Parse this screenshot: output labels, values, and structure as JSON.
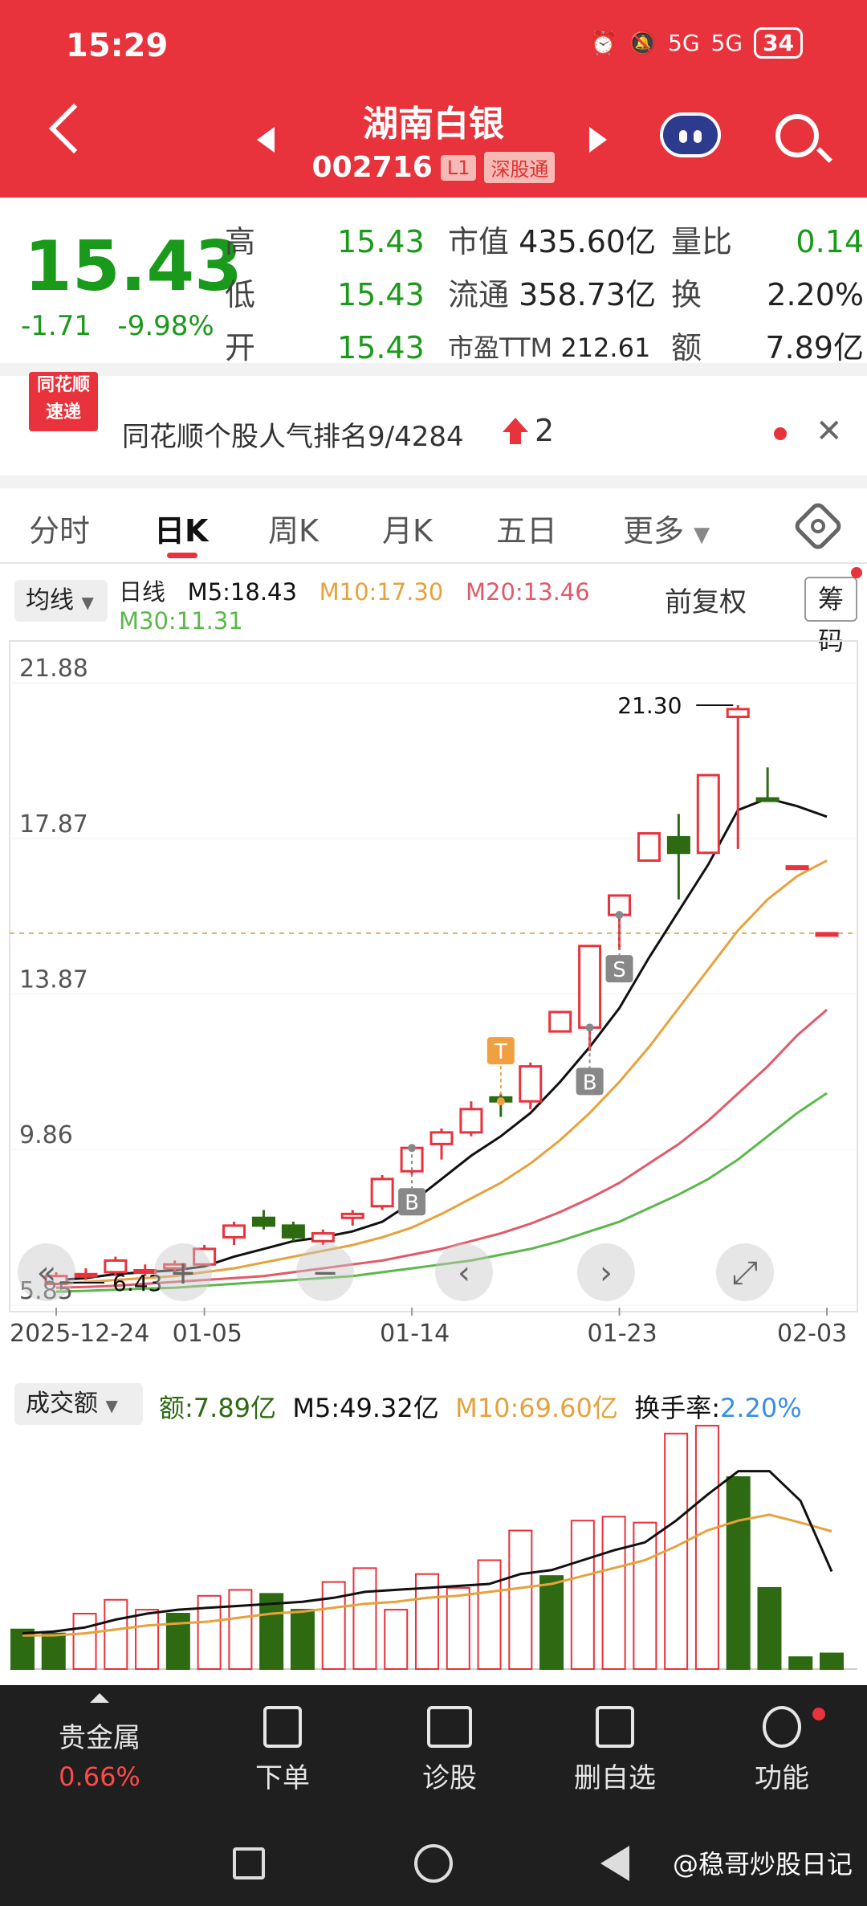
{
  "status_bar": {
    "time": "15:29",
    "network1": "5G",
    "network2": "5G",
    "battery": "34"
  },
  "header": {
    "stock_name": "湖南白银",
    "stock_code": "002716",
    "tag_level": "L1",
    "tag_connect": "深股通"
  },
  "quote": {
    "price": "15.43",
    "change": "-1.71",
    "change_pct": "-9.98%",
    "high_label": "高",
    "high": "15.43",
    "low_label": "低",
    "low": "15.43",
    "open_label": "开",
    "open": "15.43",
    "mcap_label": "市值",
    "mcap": "435.60亿",
    "float_label": "流通",
    "float": "358.73亿",
    "pe_label": "市盈TTM",
    "pe": "212.61",
    "vr_label": "量比",
    "vr": "0.14",
    "turnover_label": "换",
    "turnover": "2.20%",
    "amount_label": "额",
    "amount": "7.89亿"
  },
  "rank_banner": {
    "logo_line1": "同花顺",
    "logo_line2": "速递",
    "text": "同花顺个股人气排名9/4284",
    "rise": "2"
  },
  "tabs": [
    "分时",
    "日K",
    "周K",
    "月K",
    "五日",
    "更多"
  ],
  "active_tab": "日K",
  "kline_header": {
    "ma_button": "均线",
    "period": "日线",
    "m5": "M5:18.43",
    "m10": "M10:17.30",
    "m20": "M20:13.46",
    "m30": "M30:11.31",
    "adjust": "前复权",
    "chips": "筹码"
  },
  "volume_header": {
    "button": "成交额",
    "amount": "额:7.89亿",
    "m5": "M5:49.32亿",
    "m10": "M10:69.60亿",
    "turnover_label": "换手率:",
    "turnover": "2.20%"
  },
  "colors": {
    "up": "#e8323c",
    "down": "#2d6a12",
    "ma5": "#111111",
    "ma10": "#e6a23c",
    "ma20": "#e05a6a",
    "ma30": "#5bb84a"
  },
  "chart_data": [
    {
      "type": "candlestick",
      "y_ticks": [
        "21.88",
        "17.87",
        "13.87",
        "9.86",
        "5.85"
      ],
      "ylim": [
        5.85,
        21.88
      ],
      "x_ticks": [
        "2025-12-24",
        "01-05",
        "01-14",
        "01-23",
        "02-03"
      ],
      "annotations": {
        "max_label": "21.30",
        "min_label": "6.43",
        "markers": [
          "T",
          "B",
          "B",
          "S"
        ]
      },
      "candles": [
        {
          "o": 6.4,
          "c": 6.6,
          "h": 6.7,
          "l": 6.43
        },
        {
          "o": 6.6,
          "c": 6.65,
          "h": 6.8,
          "l": 6.5
        },
        {
          "o": 6.7,
          "c": 7.0,
          "h": 7.1,
          "l": 6.6
        },
        {
          "o": 6.7,
          "c": 6.75,
          "h": 6.9,
          "l": 6.6
        },
        {
          "o": 6.8,
          "c": 6.9,
          "h": 7.0,
          "l": 6.7
        },
        {
          "o": 6.9,
          "c": 7.3,
          "h": 7.4,
          "l": 6.9
        },
        {
          "o": 7.6,
          "c": 7.9,
          "h": 8.0,
          "l": 7.4
        },
        {
          "o": 8.1,
          "c": 7.9,
          "h": 8.3,
          "l": 7.8
        },
        {
          "o": 7.9,
          "c": 7.6,
          "h": 8.0,
          "l": 7.5
        },
        {
          "o": 7.5,
          "c": 7.7,
          "h": 7.8,
          "l": 7.4
        },
        {
          "o": 8.1,
          "c": 8.2,
          "h": 8.3,
          "l": 7.9
        },
        {
          "o": 8.4,
          "c": 9.1,
          "h": 9.2,
          "l": 8.3
        },
        {
          "o": 9.3,
          "c": 9.9,
          "h": 10.0,
          "l": 9.2
        },
        {
          "o": 10.0,
          "c": 10.3,
          "h": 10.4,
          "l": 9.6
        },
        {
          "o": 10.3,
          "c": 10.9,
          "h": 11.1,
          "l": 10.2
        },
        {
          "o": 11.2,
          "c": 11.1,
          "h": 11.3,
          "l": 10.7
        },
        {
          "o": 11.1,
          "c": 12.0,
          "h": 12.1,
          "l": 10.9
        },
        {
          "o": 12.9,
          "c": 13.4,
          "h": 13.4,
          "l": 12.9
        },
        {
          "o": 13.0,
          "c": 15.1,
          "h": 15.1,
          "l": 12.4
        },
        {
          "o": 15.9,
          "c": 16.4,
          "h": 16.4,
          "l": 15.0
        },
        {
          "o": 17.3,
          "c": 18.0,
          "h": 18.0,
          "l": 17.3
        },
        {
          "o": 17.9,
          "c": 17.5,
          "h": 18.5,
          "l": 16.3
        },
        {
          "o": 17.5,
          "c": 19.5,
          "h": 19.5,
          "l": 17.5
        },
        {
          "o": 21.0,
          "c": 21.2,
          "h": 21.3,
          "l": 17.6
        },
        {
          "o": 18.9,
          "c": 18.85,
          "h": 19.7,
          "l": 18.85
        },
        {
          "o": 17.15,
          "c": 17.15,
          "h": 17.15,
          "l": 17.15
        },
        {
          "o": 15.43,
          "c": 15.43,
          "h": 15.43,
          "l": 15.43
        }
      ],
      "ma5": [
        6.5,
        6.55,
        6.65,
        6.7,
        6.75,
        6.85,
        7.1,
        7.3,
        7.5,
        7.6,
        7.75,
        8.0,
        8.5,
        9.1,
        9.7,
        10.2,
        10.8,
        11.6,
        12.5,
        13.5,
        14.8,
        16.0,
        17.2,
        18.6,
        18.9,
        18.7,
        18.43
      ],
      "ma10": [
        6.4,
        6.45,
        6.5,
        6.55,
        6.6,
        6.7,
        6.8,
        6.95,
        7.1,
        7.25,
        7.4,
        7.6,
        7.85,
        8.2,
        8.6,
        9.0,
        9.5,
        10.1,
        10.8,
        11.6,
        12.5,
        13.5,
        14.5,
        15.5,
        16.3,
        16.9,
        17.3
      ],
      "ma20": [
        6.3,
        6.32,
        6.35,
        6.4,
        6.45,
        6.5,
        6.55,
        6.6,
        6.7,
        6.8,
        6.9,
        7.0,
        7.15,
        7.3,
        7.5,
        7.7,
        7.95,
        8.25,
        8.6,
        9.0,
        9.5,
        10.0,
        10.6,
        11.3,
        12.0,
        12.8,
        13.46
      ],
      "ma30": [
        6.2,
        6.22,
        6.25,
        6.28,
        6.3,
        6.35,
        6.4,
        6.45,
        6.5,
        6.55,
        6.6,
        6.7,
        6.8,
        6.9,
        7.0,
        7.15,
        7.3,
        7.5,
        7.75,
        8.0,
        8.35,
        8.7,
        9.1,
        9.6,
        10.2,
        10.8,
        11.31
      ]
    },
    {
      "type": "bar",
      "title": "成交额",
      "values": [
        20,
        18,
        28,
        35,
        30,
        28,
        37,
        40,
        38,
        30,
        44,
        51,
        30,
        48,
        41,
        55,
        70,
        47,
        75,
        77,
        74,
        119,
        123,
        97,
        41,
        6,
        7.89
      ],
      "direction": [
        "down",
        "down",
        "up",
        "up",
        "up",
        "down",
        "up",
        "up",
        "down",
        "down",
        "up",
        "up",
        "up",
        "up",
        "up",
        "up",
        "up",
        "down",
        "up",
        "up",
        "up",
        "up",
        "up",
        "down",
        "down",
        "down",
        "down"
      ],
      "ma5": [
        18,
        19,
        21,
        25,
        28,
        30,
        31,
        32,
        33,
        34,
        36,
        39,
        40,
        41,
        42,
        43,
        48,
        50,
        55,
        60,
        64,
        75,
        88,
        100,
        100,
        85,
        49.32
      ],
      "ma10": [
        17,
        17,
        18,
        20,
        22,
        23,
        24,
        26,
        28,
        29,
        31,
        33,
        34,
        36,
        37,
        39,
        41,
        43,
        47,
        51,
        55,
        62,
        70,
        75,
        78,
        74,
        69.6
      ]
    }
  ],
  "bottom_nav": {
    "item1_label": "贵金属",
    "item1_pct": "0.66%",
    "item2_label": "下单",
    "item3_label": "诊股",
    "item4_label": "删自选",
    "item5_label": "功能"
  },
  "watermark": "@稳哥炒股日记"
}
